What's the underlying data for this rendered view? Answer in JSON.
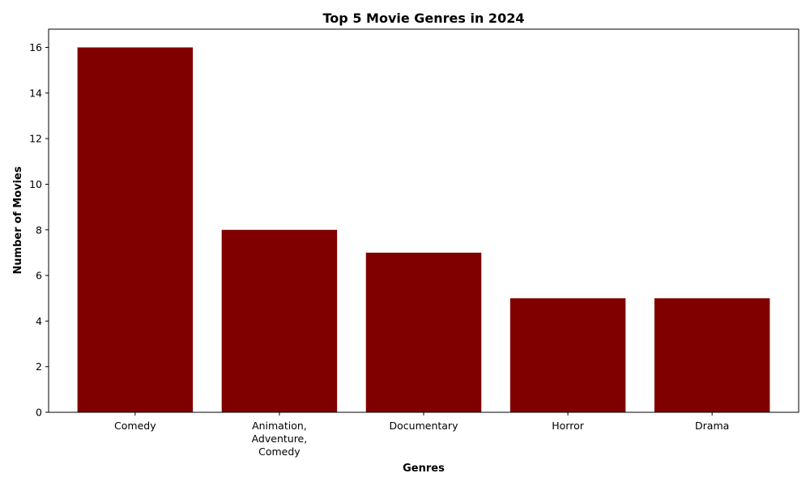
{
  "colors": {
    "bar": "#800000",
    "background": "#ffffff",
    "axis": "#000000"
  },
  "chart_data": {
    "type": "bar",
    "title": "Top 5 Movie Genres in 2024",
    "xlabel": "Genres",
    "ylabel": "Number of Movies",
    "categories": [
      "Comedy",
      "Animation, Adventure, Comedy",
      "Documentary",
      "Horror",
      "Drama"
    ],
    "category_label_lines": [
      [
        "Comedy"
      ],
      [
        "Animation,",
        "Adventure,",
        "Comedy"
      ],
      [
        "Documentary"
      ],
      [
        "Horror"
      ],
      [
        "Drama"
      ]
    ],
    "values": [
      16,
      8,
      7,
      5,
      5
    ],
    "ylim": [
      0,
      16.8
    ],
    "yticks": [
      0,
      2,
      4,
      6,
      8,
      10,
      12,
      14,
      16
    ],
    "grid": false,
    "legend": false
  }
}
